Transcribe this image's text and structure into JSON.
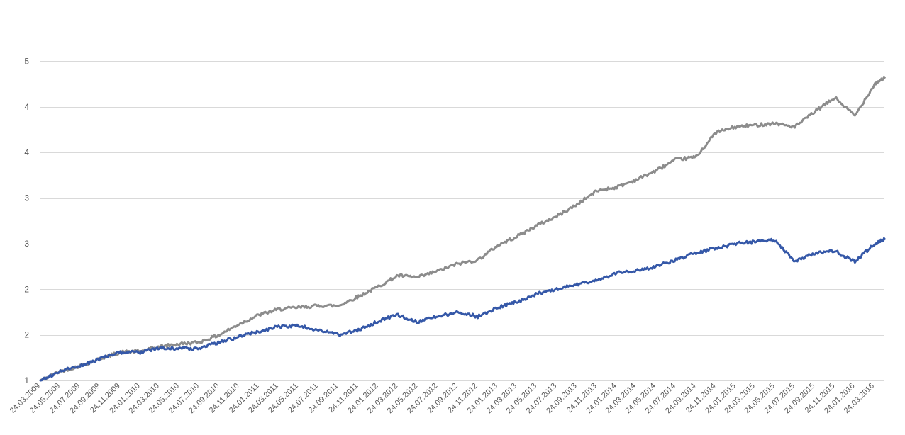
{
  "chart_data": {
    "type": "line",
    "title": "",
    "xlabel": "",
    "ylabel": "",
    "grid": true,
    "legend": "none",
    "ylim": [
      1,
      5
    ],
    "y_ticks": [
      {
        "value": 1.0,
        "label": "1"
      },
      {
        "value": 1.5,
        "label": "2"
      },
      {
        "value": 2.0,
        "label": "2"
      },
      {
        "value": 2.5,
        "label": "3"
      },
      {
        "value": 3.0,
        "label": "3"
      },
      {
        "value": 3.5,
        "label": "4"
      },
      {
        "value": 4.0,
        "label": "4"
      },
      {
        "value": 4.5,
        "label": "5"
      }
    ],
    "x_ticks": [
      "24.03.2009",
      "24.05.2009",
      "24.07.2009",
      "24.09.2009",
      "24.11.2009",
      "24.01.2010",
      "24.03.2010",
      "24.05.2010",
      "24.07.2010",
      "24.09.2010",
      "24.11.2010",
      "24.01.2011",
      "24.03.2011",
      "24.05.2011",
      "24.07.2011",
      "24.09.2011",
      "24.11.2011",
      "24.01.2012",
      "24.03.2012",
      "24.05.2012",
      "24.07.2012",
      "24.09.2012",
      "24.11.2012",
      "24.01.2013",
      "24.03.2013",
      "24.05.2013",
      "24.07.2013",
      "24.09.2013",
      "24.11.2013",
      "24.01.2014",
      "24.03.2014",
      "24.05.2014",
      "24.07.2014",
      "24.09.2014",
      "24.11.2014",
      "24.01.2015",
      "24.03.2015",
      "24.05.2015",
      "24.07.2015",
      "24.09.2015",
      "24.11.2015",
      "24.01.2016",
      "24.03.2016"
    ],
    "x": [
      "24.03.2009",
      "24.05.2009",
      "24.07.2009",
      "24.09.2009",
      "24.11.2009",
      "24.01.2010",
      "24.03.2010",
      "24.05.2010",
      "24.07.2010",
      "24.09.2010",
      "24.11.2010",
      "24.01.2011",
      "24.03.2011",
      "24.05.2011",
      "24.07.2011",
      "24.09.2011",
      "24.11.2011",
      "24.01.2012",
      "24.03.2012",
      "24.05.2012",
      "24.07.2012",
      "24.09.2012",
      "24.11.2012",
      "24.01.2013",
      "24.03.2013",
      "24.05.2013",
      "24.07.2013",
      "24.09.2013",
      "24.11.2013",
      "24.01.2014",
      "24.03.2014",
      "24.05.2014",
      "24.07.2014",
      "24.09.2014",
      "24.11.2014",
      "24.01.2015",
      "24.03.2015",
      "24.05.2015",
      "24.07.2015",
      "24.09.2015",
      "24.11.2015",
      "24.01.2016",
      "24.03.2016",
      "24.04.2016"
    ],
    "series": [
      {
        "color": "#8c8c8c",
        "values": [
          1.0,
          1.1,
          1.16,
          1.24,
          1.31,
          1.32,
          1.37,
          1.4,
          1.42,
          1.5,
          1.62,
          1.72,
          1.78,
          1.8,
          1.82,
          1.82,
          1.92,
          2.03,
          2.15,
          2.13,
          2.2,
          2.28,
          2.32,
          2.48,
          2.58,
          2.7,
          2.8,
          2.93,
          3.08,
          3.12,
          3.2,
          3.3,
          3.42,
          3.45,
          3.72,
          3.78,
          3.8,
          3.82,
          3.78,
          3.95,
          4.1,
          3.9,
          4.25,
          4.32
        ]
      },
      {
        "color": "#3558a8",
        "values": [
          1.0,
          1.1,
          1.16,
          1.24,
          1.31,
          1.31,
          1.35,
          1.35,
          1.35,
          1.42,
          1.48,
          1.54,
          1.59,
          1.6,
          1.55,
          1.5,
          1.55,
          1.65,
          1.72,
          1.64,
          1.7,
          1.75,
          1.7,
          1.8,
          1.86,
          1.95,
          2.0,
          2.05,
          2.1,
          2.18,
          2.2,
          2.25,
          2.32,
          2.4,
          2.45,
          2.5,
          2.52,
          2.54,
          2.3,
          2.4,
          2.42,
          2.3,
          2.5,
          2.55
        ]
      }
    ]
  }
}
